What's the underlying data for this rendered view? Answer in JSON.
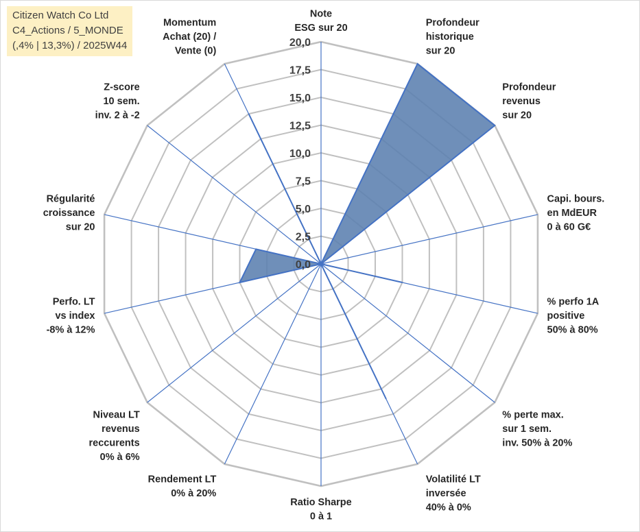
{
  "header": {
    "lines": [
      "Citizen Watch Co Ltd",
      "C4_Actions / 5_MONDE",
      "(,4% | 13,3%) / 2025W44"
    ]
  },
  "colors": {
    "grid": "#c0c0c0",
    "spoke": "#4472c4",
    "fill": "#5b7faf",
    "stroke": "#4472c4",
    "title_bg": "#fdf0c4"
  },
  "chart_data": {
    "type": "radar",
    "rmin": 0,
    "rmax": 20,
    "ticks": [
      "0,0",
      "2,5",
      "5,0",
      "7,5",
      "10,0",
      "12,5",
      "15,0",
      "17,5",
      "20,0"
    ],
    "axes": [
      [
        "Note",
        "ESG sur 20"
      ],
      [
        "Profondeur",
        "historique",
        "sur 20"
      ],
      [
        "Profondeur",
        "revenus",
        "sur 20"
      ],
      [
        "Capi. bours.",
        "en MdEUR",
        "0 à 60 G€"
      ],
      [
        "% perfo 1A",
        "positive",
        "50% à 80%"
      ],
      [
        "% perte max.",
        "sur 1 sem.",
        "inv. 50% à 20%"
      ],
      [
        "Volatilité LT",
        "inversée",
        "40% à 0%"
      ],
      [
        "Ratio Sharpe",
        "0 à 1"
      ],
      [
        "Rendement LT",
        "0% à 20%"
      ],
      [
        "Niveau LT",
        "revenus",
        "reccurents",
        "0% à 6%"
      ],
      [
        "Perfo. LT",
        "vs index",
        "-8% à 12%"
      ],
      [
        "Régularité",
        "croissance",
        "sur 20"
      ],
      [
        "Z-score",
        "10 sem.",
        "inv. 2 à -2"
      ],
      [
        "Momentum",
        "Achat (20) /",
        "Vente (0)"
      ]
    ],
    "series": [
      {
        "values": [
          0,
          20,
          20,
          0,
          7.5,
          0,
          13.5,
          0,
          0,
          0,
          7.5,
          6,
          0,
          15
        ]
      }
    ],
    "grid": true,
    "legend": "none"
  }
}
